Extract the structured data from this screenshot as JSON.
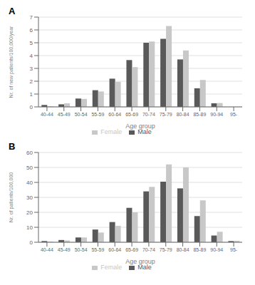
{
  "chart_data": [
    {
      "type": "bar",
      "title": "A",
      "x_label": "Age group",
      "y_label": "Nr. of new patients/100,000/year",
      "categories": [
        "40-44",
        "45-49",
        "50-54",
        "55-59",
        "60-64",
        "65-69",
        "70-74",
        "75-79",
        "80-84",
        "85-89",
        "90-94",
        "95-"
      ],
      "series": [
        {
          "name": "Male",
          "color": "#595959",
          "values": [
            0.15,
            0.2,
            0.65,
            1.3,
            2.2,
            3.65,
            5.0,
            5.3,
            3.7,
            1.45,
            0.28,
            0.0
          ]
        },
        {
          "name": "Female",
          "color": "#c8c8c8",
          "values": [
            0.05,
            0.28,
            0.62,
            1.2,
            1.95,
            3.1,
            5.1,
            6.3,
            4.4,
            2.1,
            0.3,
            0.0
          ]
        }
      ],
      "ylim": [
        0,
        7
      ],
      "yticks": [
        0,
        1,
        2,
        3,
        4,
        5,
        6,
        7
      ],
      "grid": true,
      "legend": "bottom"
    },
    {
      "type": "bar",
      "title": "B",
      "x_label": "Age group",
      "y_label": "Nr. of patients/100,000",
      "categories": [
        "40-44",
        "45-49",
        "50-54",
        "55-59",
        "60-64",
        "65-69",
        "70-74",
        "75-79",
        "80-84",
        "85-89",
        "90-94",
        "95-"
      ],
      "series": [
        {
          "name": "Male",
          "color": "#595959",
          "values": [
            0.8,
            1.5,
            3.2,
            8.5,
            13.5,
            23.0,
            34.0,
            40.5,
            36.0,
            17.5,
            4.5,
            0.8
          ]
        },
        {
          "name": "Female",
          "color": "#c8c8c8",
          "values": [
            0.5,
            1.2,
            3.2,
            6.5,
            11.0,
            20.0,
            37.0,
            52.0,
            50.0,
            28.0,
            7.0,
            1.0
          ]
        }
      ],
      "ylim": [
        0,
        60
      ],
      "yticks": [
        0,
        10,
        20,
        30,
        40,
        50,
        60
      ],
      "grid": true,
      "legend": "bottom"
    }
  ]
}
